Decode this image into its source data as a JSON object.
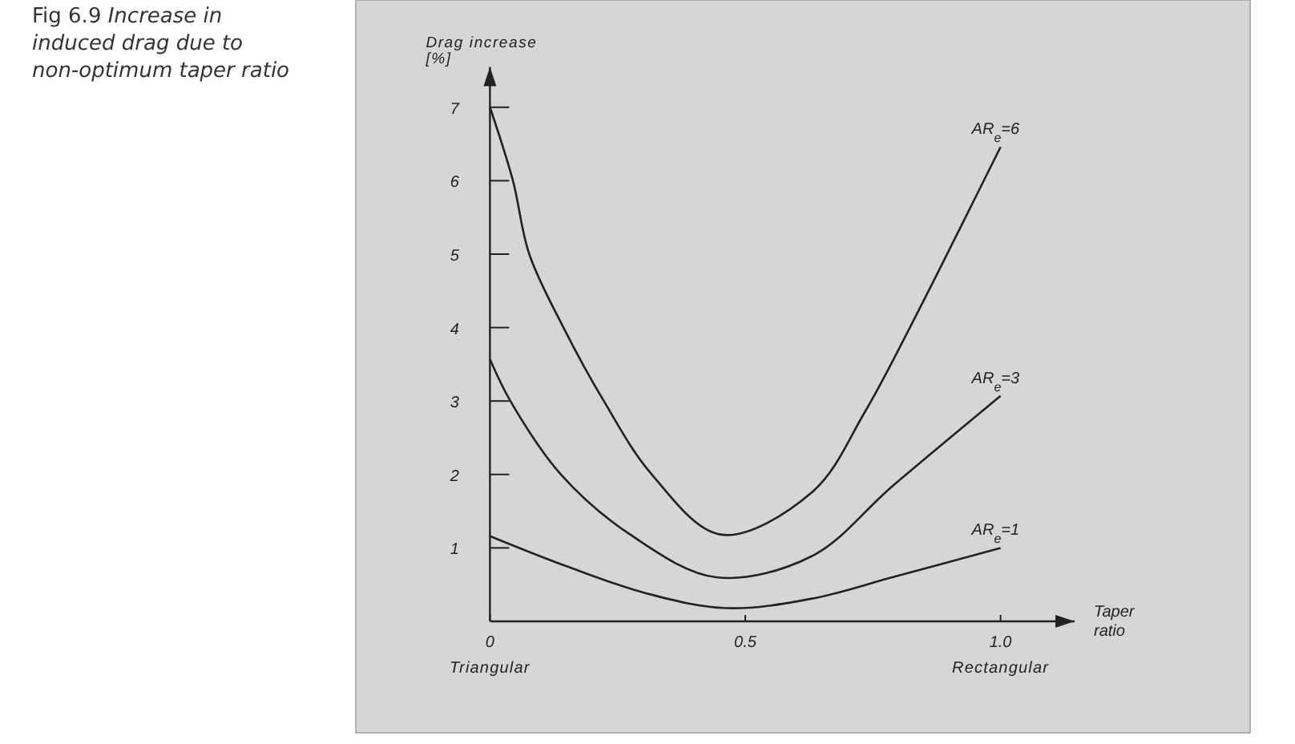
{
  "chart_data": {
    "type": "line",
    "title": "Fig 6.9 Increase in induced drag due to non-optimum taper ratio",
    "xlabel": "Taper ratio",
    "ylabel": "Drag increase [%]",
    "xlim": [
      0,
      1.145
    ],
    "ylim": [
      0,
      7.55
    ],
    "xticks": [
      0,
      0.5,
      {
        "value": 1,
        "label": "1.0"
      }
    ],
    "yticks": [
      1,
      2,
      3,
      4,
      5,
      6,
      7
    ],
    "grid": false,
    "marker": "none",
    "line_style": "solid",
    "annotations": [
      "Triangular",
      "Rectangular"
    ],
    "series": [
      {
        "name": "AR$_{e}$=6",
        "color": "#222222",
        "x": [
          0,
          0.045,
          0.077,
          0.144,
          0.223,
          0.317,
          0.453,
          0.631,
          0.735,
          0.84,
          0.924,
          1.0
        ],
        "values": [
          7.0,
          6.0,
          5.0,
          4.0,
          3.0,
          2.0,
          1.18,
          1.76,
          2.86,
          4.24,
          5.4,
          6.46
        ]
      },
      {
        "name": "AR$_{e}$=3",
        "color": "#222222",
        "x": [
          0,
          0.04,
          0.139,
          0.275,
          0.443,
          0.631,
          0.788,
          1.0
        ],
        "values": [
          3.57,
          3.0,
          2.0,
          1.18,
          0.6,
          0.89,
          1.84,
          3.07
        ]
      },
      {
        "name": "AR$_{e}$=1",
        "color": "#222222",
        "x": [
          0,
          0.15,
          0.307,
          0.463,
          0.631,
          0.788,
          1.0
        ],
        "values": [
          1.16,
          0.75,
          0.38,
          0.18,
          0.31,
          0.6,
          1.0
        ]
      }
    ]
  }
}
